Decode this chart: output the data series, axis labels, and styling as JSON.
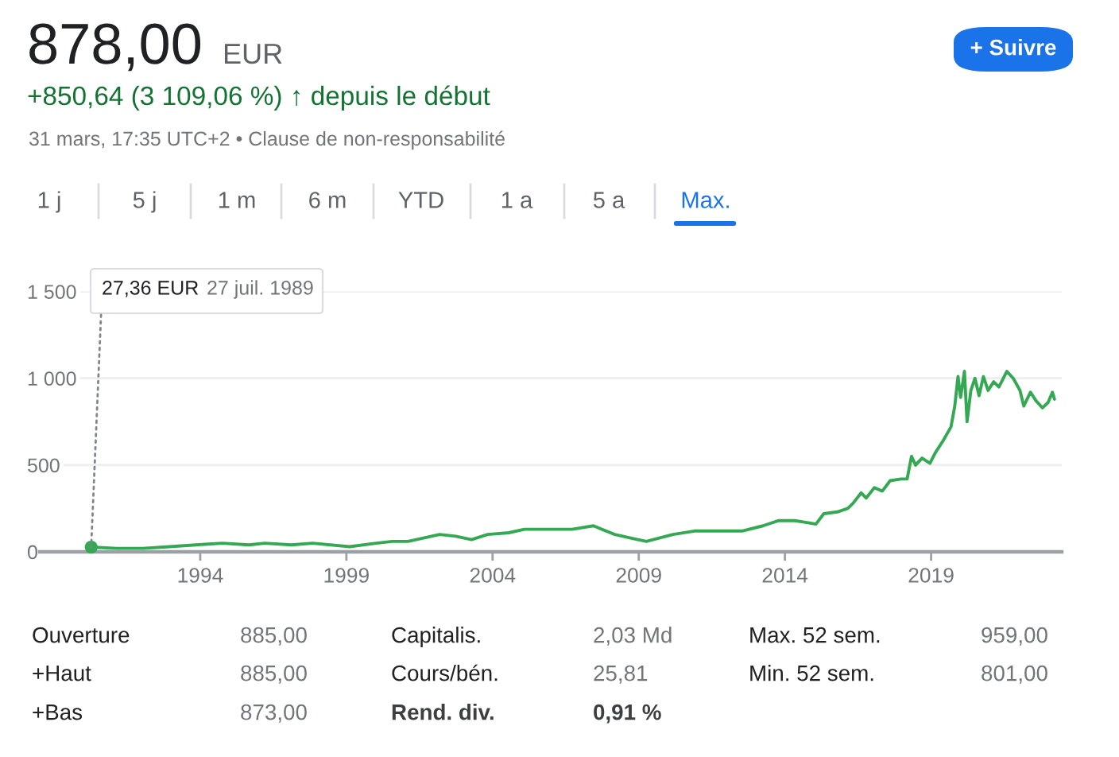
{
  "chart_data": {
    "type": "line",
    "title": "878,00",
    "subtitle": "+850,64 (3 109,06 %) ↑ depuis le début",
    "x": [
      1990.27,
      1991.13,
      1992.04,
      1992.95,
      1993.85,
      1994.76,
      1995.67,
      1996.21,
      1997.12,
      1997.84,
      1999.11,
      2000.02,
      2000.56,
      2001.11,
      2002.19,
      2002.74,
      2003.28,
      2003.83,
      2004.55,
      2005.09,
      2006.0,
      2006.72,
      2007.45,
      2008.18,
      2008.72,
      2009.26,
      2010.17,
      2010.9,
      2011.44,
      2012.53,
      2013.25,
      2013.79,
      2014.34,
      2015.06,
      2015.33,
      2015.79,
      2016.15,
      2016.33,
      2016.61,
      2016.78,
      2017.06,
      2017.33,
      2017.6,
      2017.97,
      2018.18,
      2018.33,
      2018.47,
      2018.69,
      2018.96,
      2019.14,
      2019.41,
      2019.68,
      2019.81,
      2019.92,
      2020.01,
      2020.14,
      2020.23,
      2020.36,
      2020.5,
      2020.64,
      2020.79,
      2020.95,
      2021.14,
      2021.32,
      2021.59,
      2021.81,
      2022.04,
      2022.17,
      2022.4,
      2022.59,
      2022.81,
      2023.0,
      2023.15,
      2023.22
    ],
    "series": [
      {
        "color": "#34a853",
        "values": [
          27.36,
          20,
          20,
          30,
          40,
          50,
          40,
          50,
          40,
          50,
          30,
          50,
          60,
          60,
          100,
          90,
          70,
          100,
          110,
          130,
          130,
          130,
          150,
          100,
          80,
          60,
          100,
          120,
          120,
          120,
          150,
          180,
          180,
          160,
          220,
          230,
          250,
          280,
          340,
          310,
          370,
          350,
          410,
          420,
          420,
          550,
          500,
          540,
          510,
          570,
          640,
          720,
          840,
          1010,
          890,
          1040,
          750,
          930,
          1000,
          900,
          1010,
          930,
          980,
          950,
          1040,
          1000,
          930,
          840,
          920,
          870,
          830,
          860,
          920,
          880
        ]
      }
    ],
    "xlim": [
      1988.51,
      2023.47
    ],
    "xticks": [
      1994,
      1999,
      2004,
      2009,
      2014,
      2019
    ],
    "ylim": [
      0,
      1500
    ],
    "yticks": [
      0,
      500,
      {
        "value": 1000,
        "label": "1 000"
      },
      {
        "value": 1500,
        "label": "1 500"
      }
    ],
    "grid": "y",
    "annotations": [
      {
        "text": "27,36 EUR",
        "x": 1990.27,
        "y": 27.36
      },
      "27 juil. 1989",
      "EUR",
      "31 mars, 17:35 UTC+2 • Clause de non-responsabilité",
      "1 j",
      "5 j",
      "1 m",
      "6 m",
      "YTD",
      "1 a",
      "5 a",
      "Max.",
      "+ Suivre",
      "Ouverture",
      "885,00",
      "Capitalis.",
      "2,03 Md",
      "Max. 52 sem.",
      "959,00",
      "+Haut",
      "885,00",
      "Cours/bén.",
      "25,81",
      "Min. 52 sem.",
      "801,00",
      "+Bas",
      "873,00",
      "Rend. div.",
      "0,91 %"
    ]
  }
}
